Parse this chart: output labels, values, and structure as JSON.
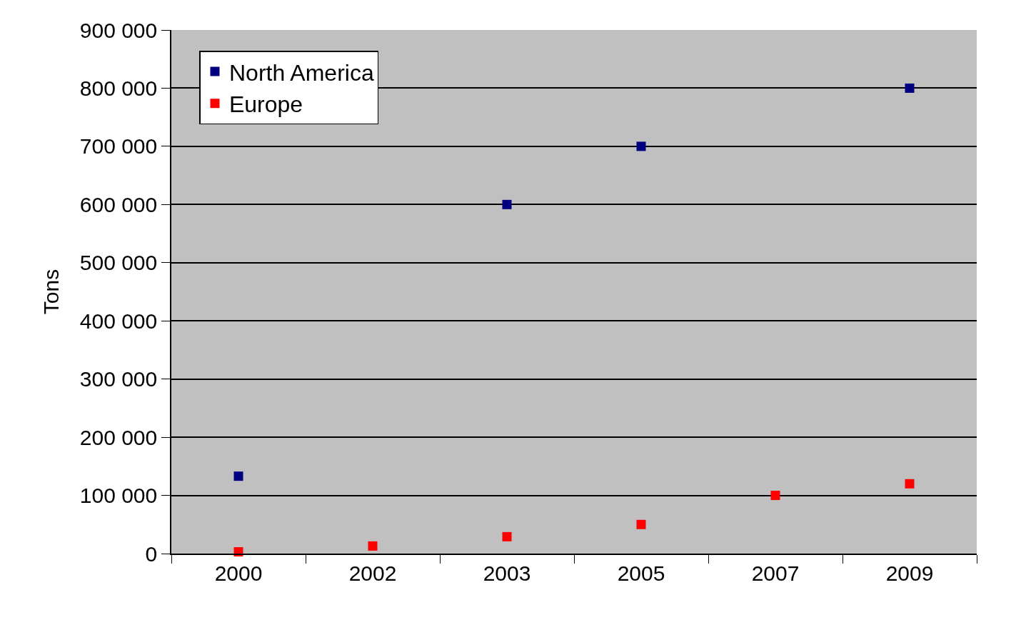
{
  "chart_data": {
    "type": "scatter",
    "ylabel": "Tons",
    "categories": [
      "2000",
      "2002",
      "2003",
      "2005",
      "2007",
      "2009"
    ],
    "series": [
      {
        "name": "North America",
        "color": "#000080",
        "values": [
          133000,
          null,
          600000,
          700000,
          null,
          800000
        ]
      },
      {
        "name": "Europe",
        "color": "#ff0000",
        "values": [
          3000,
          13000,
          29000,
          50000,
          100000,
          120000
        ]
      }
    ],
    "ylim": [
      0,
      900000
    ],
    "yticks": [
      {
        "value": 0,
        "label": "0"
      },
      {
        "value": 100000,
        "label": "100 000"
      },
      {
        "value": 200000,
        "label": "200 000"
      },
      {
        "value": 300000,
        "label": "300 000"
      },
      {
        "value": 400000,
        "label": "400 000"
      },
      {
        "value": 500000,
        "label": "500 000"
      },
      {
        "value": 600000,
        "label": "600 000"
      },
      {
        "value": 700000,
        "label": "700 000"
      },
      {
        "value": 800000,
        "label": "800 000"
      },
      {
        "value": 900000,
        "label": "900 000"
      }
    ],
    "grid": "y",
    "legend": "top left",
    "marker": "square"
  }
}
